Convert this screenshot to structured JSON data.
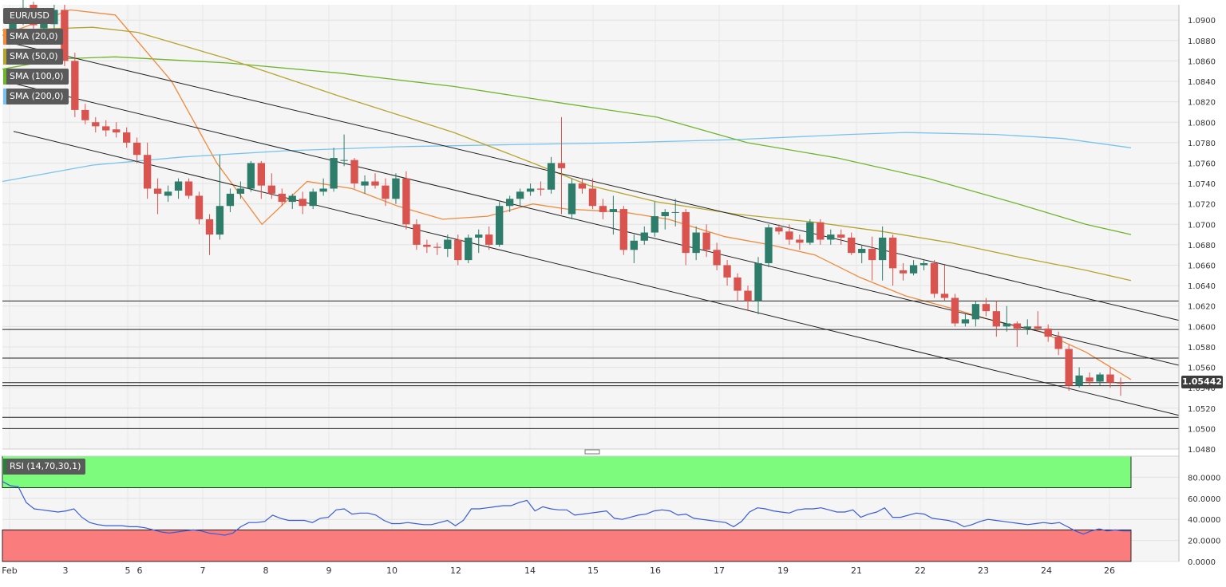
{
  "legend": {
    "symbol": "EUR/USD",
    "sma20": "SMA (20,0)",
    "sma50": "SMA (50,0)",
    "sma100": "SMA (100,0)",
    "sma200": "SMA (200,0)",
    "rsi": "RSI (14,70,30,1)"
  },
  "colors": {
    "bull": "#2e7d6b",
    "bear": "#d9534f",
    "sma20": "#f08a3c",
    "sma50": "#b5a52f",
    "sma100": "#6fb52c",
    "sma200": "#78c3ee",
    "rsi": "#3a5bd9",
    "overbought_zone": "#7cfb7c",
    "oversold_zone": "#fb7c7c"
  },
  "current_price": "1.05442",
  "chart_data": [
    {
      "type": "candlestick",
      "title": "EUR/USD",
      "ylim": [
        1.048,
        1.0915
      ],
      "grid": true,
      "y_ticks": [
        "1.0900",
        "1.0880",
        "1.0860",
        "1.0840",
        "1.0820",
        "1.0800",
        "1.0780",
        "1.0760",
        "1.0740",
        "1.0720",
        "1.0700",
        "1.0680",
        "1.0660",
        "1.0640",
        "1.0620",
        "1.0600",
        "1.0580",
        "1.0560",
        "1.0540",
        "1.0520",
        "1.0500",
        "1.0480"
      ],
      "x_ticks": [
        "Feb",
        "3",
        "5",
        "6",
        "7",
        "8",
        "9",
        "10",
        "12",
        "14",
        "15",
        "16",
        "17",
        "19",
        "21",
        "22",
        "23",
        "24",
        "26"
      ],
      "candles": [
        [
          1.089,
          1.0912,
          1.0885,
          1.0905
        ],
        [
          1.0905,
          1.092,
          1.0895,
          1.0912
        ],
        [
          1.0915,
          1.0918,
          1.089,
          1.0895
        ],
        [
          1.0892,
          1.0905,
          1.088,
          1.0898
        ],
        [
          1.0896,
          1.0915,
          1.0885,
          1.091
        ],
        [
          1.091,
          1.0915,
          1.0855,
          1.086
        ],
        [
          1.086,
          1.0868,
          1.0805,
          1.0812
        ],
        [
          1.0812,
          1.0818,
          1.0798,
          1.0802
        ],
        [
          1.08,
          1.0805,
          1.079,
          1.0796
        ],
        [
          1.0796,
          1.0802,
          1.0786,
          1.0792
        ],
        [
          1.0793,
          1.08,
          1.0785,
          1.079
        ],
        [
          1.079,
          1.0795,
          1.0775,
          1.078
        ],
        [
          1.078,
          1.0785,
          1.076,
          1.0768
        ],
        [
          1.0768,
          1.078,
          1.0725,
          1.0735
        ],
        [
          1.0735,
          1.0745,
          1.071,
          1.073
        ],
        [
          1.0728,
          1.0738,
          1.0722,
          1.0732
        ],
        [
          1.0733,
          1.0745,
          1.0725,
          1.0742
        ],
        [
          1.0742,
          1.0745,
          1.0725,
          1.0728
        ],
        [
          1.0728,
          1.0732,
          1.07,
          1.0705
        ],
        [
          1.0705,
          1.071,
          1.067,
          1.069
        ],
        [
          1.069,
          1.0768,
          1.0685,
          1.0718
        ],
        [
          1.0718,
          1.0735,
          1.0712,
          1.073
        ],
        [
          1.073,
          1.0742,
          1.0725,
          1.0735
        ],
        [
          1.0735,
          1.0762,
          1.0732,
          1.076
        ],
        [
          1.076,
          1.0762,
          1.0725,
          1.0738
        ],
        [
          1.0738,
          1.075,
          1.0725,
          1.073
        ],
        [
          1.073,
          1.0735,
          1.0718,
          1.0722
        ],
        [
          1.0722,
          1.073,
          1.0715,
          1.0728
        ],
        [
          1.0725,
          1.0732,
          1.071,
          1.0718
        ],
        [
          1.0718,
          1.0735,
          1.0715,
          1.0732
        ],
        [
          1.0732,
          1.0745,
          1.0728,
          1.0735
        ],
        [
          1.0735,
          1.0775,
          1.0732,
          1.0765
        ],
        [
          1.0763,
          1.0788,
          1.0757,
          1.0763
        ],
        [
          1.0763,
          1.0765,
          1.0735,
          1.074
        ],
        [
          1.0738,
          1.0748,
          1.073,
          1.0742
        ],
        [
          1.0742,
          1.075,
          1.0735,
          1.0738
        ],
        [
          1.0738,
          1.0745,
          1.0718,
          1.0725
        ],
        [
          1.0725,
          1.075,
          1.072,
          1.0745
        ],
        [
          1.0745,
          1.0752,
          1.0695,
          1.07
        ],
        [
          1.07,
          1.0705,
          1.0675,
          1.068
        ],
        [
          1.068,
          1.0685,
          1.0672,
          1.0678
        ],
        [
          1.0678,
          1.0682,
          1.067,
          1.0677
        ],
        [
          1.0676,
          1.069,
          1.0668,
          1.0685
        ],
        [
          1.0685,
          1.069,
          1.066,
          1.0665
        ],
        [
          1.0665,
          1.069,
          1.0662,
          1.0687
        ],
        [
          1.0687,
          1.0695,
          1.0672,
          1.069
        ],
        [
          1.069,
          1.0698,
          1.0675,
          1.068
        ],
        [
          1.068,
          1.0722,
          1.0678,
          1.0718
        ],
        [
          1.0718,
          1.0728,
          1.0712,
          1.0725
        ],
        [
          1.0725,
          1.0735,
          1.0718,
          1.0732
        ],
        [
          1.0732,
          1.074,
          1.0728,
          1.0735
        ],
        [
          1.0735,
          1.0742,
          1.0728,
          1.0734
        ],
        [
          1.0734,
          1.0766,
          1.073,
          1.076
        ],
        [
          1.076,
          1.0805,
          1.071,
          1.0755
        ],
        [
          1.071,
          1.0745,
          1.0705,
          1.074
        ],
        [
          1.074,
          1.0745,
          1.073,
          1.0735
        ],
        [
          1.0735,
          1.0745,
          1.0715,
          1.0718
        ],
        [
          1.0718,
          1.0725,
          1.0705,
          1.0712
        ],
        [
          1.0712,
          1.0728,
          1.069,
          1.0715
        ],
        [
          1.0715,
          1.0718,
          1.067,
          1.0675
        ],
        [
          1.0675,
          1.069,
          1.0662,
          1.0684
        ],
        [
          1.0684,
          1.0698,
          1.068,
          1.0692
        ],
        [
          1.0692,
          1.0722,
          1.0688,
          1.0708
        ],
        [
          1.0708,
          1.0715,
          1.0695,
          1.0712
        ],
        [
          1.0712,
          1.0725,
          1.0698,
          1.0712
        ],
        [
          1.0712,
          1.0715,
          1.066,
          1.0672
        ],
        [
          1.0672,
          1.0698,
          1.0665,
          1.0692
        ],
        [
          1.0692,
          1.07,
          1.0668,
          1.0675
        ],
        [
          1.0675,
          1.0682,
          1.0655,
          1.066
        ],
        [
          1.066,
          1.0665,
          1.064,
          1.0648
        ],
        [
          1.0648,
          1.0652,
          1.0625,
          1.0635
        ],
        [
          1.0635,
          1.064,
          1.0615,
          1.0625
        ],
        [
          1.0625,
          1.0668,
          1.0612,
          1.0662
        ],
        [
          1.0662,
          1.07,
          1.0658,
          1.0697
        ],
        [
          1.0697,
          1.07,
          1.069,
          1.0693
        ],
        [
          1.0693,
          1.07,
          1.068,
          1.0685
        ],
        [
          1.0685,
          1.069,
          1.0675,
          1.0682
        ],
        [
          1.0682,
          1.0705,
          1.068,
          1.0702
        ],
        [
          1.0702,
          1.0705,
          1.068,
          1.0685
        ],
        [
          1.0685,
          1.0695,
          1.068,
          1.069
        ],
        [
          1.069,
          1.0695,
          1.068,
          1.0687
        ],
        [
          1.0687,
          1.0692,
          1.067,
          1.0672
        ],
        [
          1.0672,
          1.068,
          1.0662,
          1.0676
        ],
        [
          1.0676,
          1.0688,
          1.0645,
          1.0665
        ],
        [
          1.0665,
          1.0698,
          1.0645,
          1.0687
        ],
        [
          1.0687,
          1.069,
          1.064,
          1.0657
        ],
        [
          1.0655,
          1.0662,
          1.0645,
          1.0652
        ],
        [
          1.0652,
          1.0665,
          1.065,
          1.066
        ],
        [
          1.066,
          1.0665,
          1.0655,
          1.0662
        ],
        [
          1.0662,
          1.0665,
          1.0628,
          1.0632
        ],
        [
          1.0632,
          1.066,
          1.0625,
          1.0628
        ],
        [
          1.0628,
          1.0632,
          1.06,
          1.0603
        ],
        [
          1.0603,
          1.0612,
          1.06,
          1.0607
        ],
        [
          1.0607,
          1.0625,
          1.06,
          1.0622
        ],
        [
          1.0622,
          1.0628,
          1.061,
          1.0615
        ],
        [
          1.0615,
          1.0625,
          1.059,
          1.06
        ],
        [
          1.06,
          1.062,
          1.0595,
          1.0603
        ],
        [
          1.0603,
          1.0605,
          1.058,
          1.0598
        ],
        [
          1.0598,
          1.0607,
          1.0592,
          1.06
        ],
        [
          1.06,
          1.0615,
          1.0595,
          1.0598
        ],
        [
          1.0598,
          1.0602,
          1.0585,
          1.059
        ],
        [
          1.059,
          1.0595,
          1.0572,
          1.0578
        ],
        [
          1.0578,
          1.0582,
          1.0537,
          1.0542
        ],
        [
          1.0542,
          1.056,
          1.054,
          1.0552
        ],
        [
          1.055,
          1.0555,
          1.0542,
          1.0546
        ],
        [
          1.0546,
          1.0555,
          1.0542,
          1.0553
        ],
        [
          1.0553,
          1.056,
          1.054,
          1.0545
        ],
        [
          1.0545,
          1.055,
          1.0532,
          1.0544
        ]
      ],
      "sma20": [
        [
          0,
          1.0885
        ],
        [
          0.06,
          1.091
        ],
        [
          0.1,
          1.0905
        ],
        [
          0.15,
          1.084
        ],
        [
          0.19,
          1.076
        ],
        [
          0.23,
          1.07
        ],
        [
          0.27,
          1.0742
        ],
        [
          0.31,
          1.0735
        ],
        [
          0.35,
          1.0718
        ],
        [
          0.39,
          1.0705
        ],
        [
          0.43,
          1.0708
        ],
        [
          0.47,
          1.072
        ],
        [
          0.5,
          1.0715
        ],
        [
          0.55,
          1.0712
        ],
        [
          0.59,
          1.0705
        ],
        [
          0.64,
          1.0688
        ],
        [
          0.68,
          1.068
        ],
        [
          0.72,
          1.067
        ],
        [
          0.76,
          1.0648
        ],
        [
          0.8,
          1.063
        ],
        [
          0.84,
          1.0618
        ],
        [
          0.88,
          1.0605
        ],
        [
          0.92,
          1.0595
        ],
        [
          0.96,
          1.0575
        ],
        [
          1.0,
          1.0548
        ]
      ],
      "sma50": [
        [
          0,
          1.089
        ],
        [
          0.08,
          1.0893
        ],
        [
          0.12,
          1.0888
        ],
        [
          0.2,
          1.0862
        ],
        [
          0.3,
          1.0825
        ],
        [
          0.4,
          1.079
        ],
        [
          0.47,
          1.076
        ],
        [
          0.52,
          1.0738
        ],
        [
          0.58,
          1.0722
        ],
        [
          0.65,
          1.071
        ],
        [
          0.72,
          1.0702
        ],
        [
          0.78,
          1.0693
        ],
        [
          0.84,
          1.0682
        ],
        [
          0.9,
          1.0668
        ],
        [
          0.96,
          1.0655
        ],
        [
          1.0,
          1.0645
        ]
      ],
      "sma100": [
        [
          0,
          1.0852
        ],
        [
          0.05,
          1.0862
        ],
        [
          0.1,
          1.0864
        ],
        [
          0.2,
          1.0858
        ],
        [
          0.3,
          1.0848
        ],
        [
          0.4,
          1.0835
        ],
        [
          0.5,
          1.0818
        ],
        [
          0.58,
          1.0805
        ],
        [
          0.66,
          1.078
        ],
        [
          0.74,
          1.0765
        ],
        [
          0.82,
          1.0745
        ],
        [
          0.9,
          1.072
        ],
        [
          0.96,
          1.07
        ],
        [
          1.0,
          1.069
        ]
      ],
      "sma200": [
        [
          0,
          1.0742
        ],
        [
          0.08,
          1.0758
        ],
        [
          0.16,
          1.0766
        ],
        [
          0.25,
          1.0772
        ],
        [
          0.35,
          1.0776
        ],
        [
          0.45,
          1.0778
        ],
        [
          0.55,
          1.078
        ],
        [
          0.65,
          1.0783
        ],
        [
          0.75,
          1.0788
        ],
        [
          0.8,
          1.079
        ],
        [
          0.88,
          1.0788
        ],
        [
          0.94,
          1.0784
        ],
        [
          1.0,
          1.0775
        ]
      ],
      "horizontal_levels": [
        1.0625,
        1.0597,
        1.0569,
        1.0545,
        1.0542,
        1.0511,
        1.05
      ],
      "channel_lines": [
        [
          [
            0,
            1.0877
          ],
          [
            1.0,
            1.0606
          ]
        ],
        [
          [
            0,
            1.0838
          ],
          [
            1.0,
            1.0562
          ]
        ],
        [
          [
            0,
            1.0791
          ],
          [
            1.0,
            1.0513
          ]
        ]
      ]
    },
    {
      "type": "line",
      "title": "RSI (14,70,30,1)",
      "ylim": [
        0,
        100
      ],
      "y_ticks": [
        "80.0000",
        "60.0000",
        "40.0000",
        "20.0000",
        "0.0000"
      ],
      "overbought": 70,
      "oversold": 30,
      "values": [
        76,
        72,
        71,
        56,
        50,
        49,
        48,
        47,
        48,
        50,
        42,
        37,
        35,
        34,
        34,
        34,
        33,
        33,
        32,
        30,
        28,
        27,
        28,
        29,
        30,
        29,
        27,
        26,
        25,
        27,
        33,
        37,
        37,
        38,
        44,
        41,
        39,
        39,
        39,
        37,
        41,
        42,
        49,
        50,
        45,
        46,
        46,
        44,
        39,
        36,
        36,
        37,
        36,
        35,
        35,
        37,
        39,
        34,
        39,
        50,
        50,
        51,
        52,
        53,
        53,
        56,
        58,
        48,
        52,
        50,
        49,
        49,
        44,
        45,
        46,
        47,
        48,
        41,
        40,
        42,
        44,
        45,
        48,
        49,
        48,
        44,
        45,
        41,
        40,
        39,
        38,
        37,
        33,
        38,
        47,
        51,
        50,
        48,
        47,
        46,
        49,
        50,
        50,
        51,
        49,
        47,
        47,
        49,
        42,
        45,
        47,
        51,
        42,
        42,
        44,
        46,
        45,
        41,
        40,
        39,
        37,
        33,
        35,
        38,
        40,
        39,
        38,
        37,
        36,
        35,
        36,
        37,
        36,
        37,
        33,
        29,
        26,
        29,
        31,
        29,
        30,
        29,
        29
      ]
    }
  ]
}
